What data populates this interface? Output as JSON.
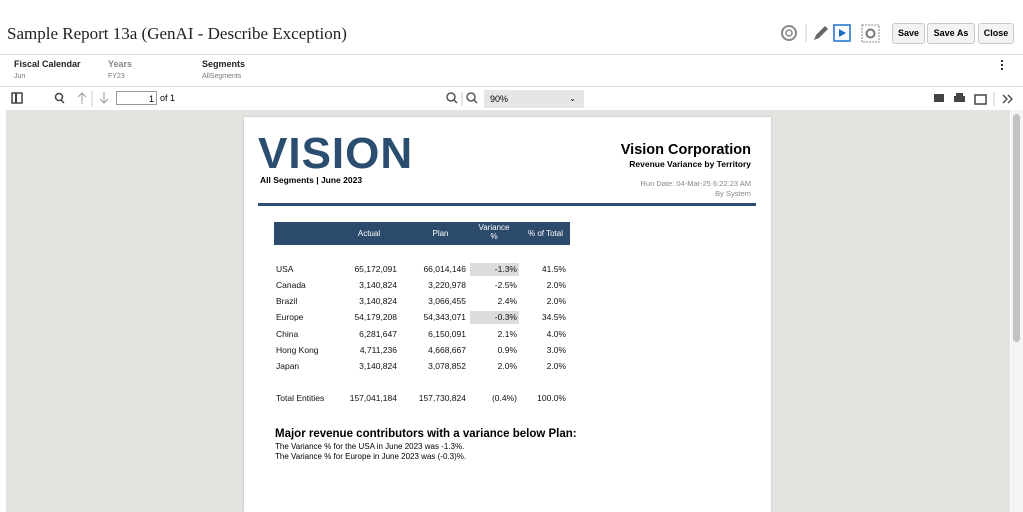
{
  "header": {
    "title": "Sample Report 13a (GenAI - Describe Exception)",
    "buttons": [
      "Save",
      "Save As",
      "Close"
    ]
  },
  "pov": [
    {
      "label": "Fiscal Calendar",
      "value": "Jun"
    },
    {
      "label": "Years",
      "value": "FY23"
    },
    {
      "label": "Segments",
      "value": "AllSegments"
    }
  ],
  "toolbar": {
    "page": "1",
    "of": "of 1",
    "zoom": "90%"
  },
  "report": {
    "logo": "VISION",
    "subtitle": "All Segments | June 2023",
    "company": "Vision Corporation",
    "report_title": "Revenue Variance by Territory",
    "run_date": "Run Date: 04-Mar-25 6:22:23 AM",
    "by": "By System",
    "table": {
      "columns": [
        "Actual",
        "Plan",
        "Variance %",
        "% of Total"
      ],
      "rows": [
        [
          "USA",
          "65,172,091",
          "66,014,146",
          "-1.3%",
          "41.5%"
        ],
        [
          "Canada",
          "3,140,824",
          "3,220,978",
          "-2.5%",
          "2.0%"
        ],
        [
          "Brazil",
          "3,140,824",
          "3,066,455",
          "2.4%",
          "2.0%"
        ],
        [
          "Europe",
          "54,179,208",
          "54,343,071",
          "-0.3%",
          "34.5%"
        ],
        [
          "China",
          "6,281,647",
          "6,150,091",
          "2.1%",
          "4.0%"
        ],
        [
          "Hong Kong",
          "4,711,236",
          "4,668,667",
          "0.9%",
          "3.0%"
        ],
        [
          "Japan",
          "3,140,824",
          "3,078,852",
          "2.0%",
          "2.0%"
        ]
      ],
      "total": [
        "Total Entities",
        "157,041,184",
        "157,730,824",
        "(0.4%)",
        "100.0%"
      ]
    },
    "summary": {
      "heading": "Major revenue contributors with a variance below Plan:",
      "lines": [
        "The Variance % for the USA in June 2023 was -1.3%.",
        "The Variance % for Europe in June 2023 was (-0.3)%."
      ]
    }
  }
}
